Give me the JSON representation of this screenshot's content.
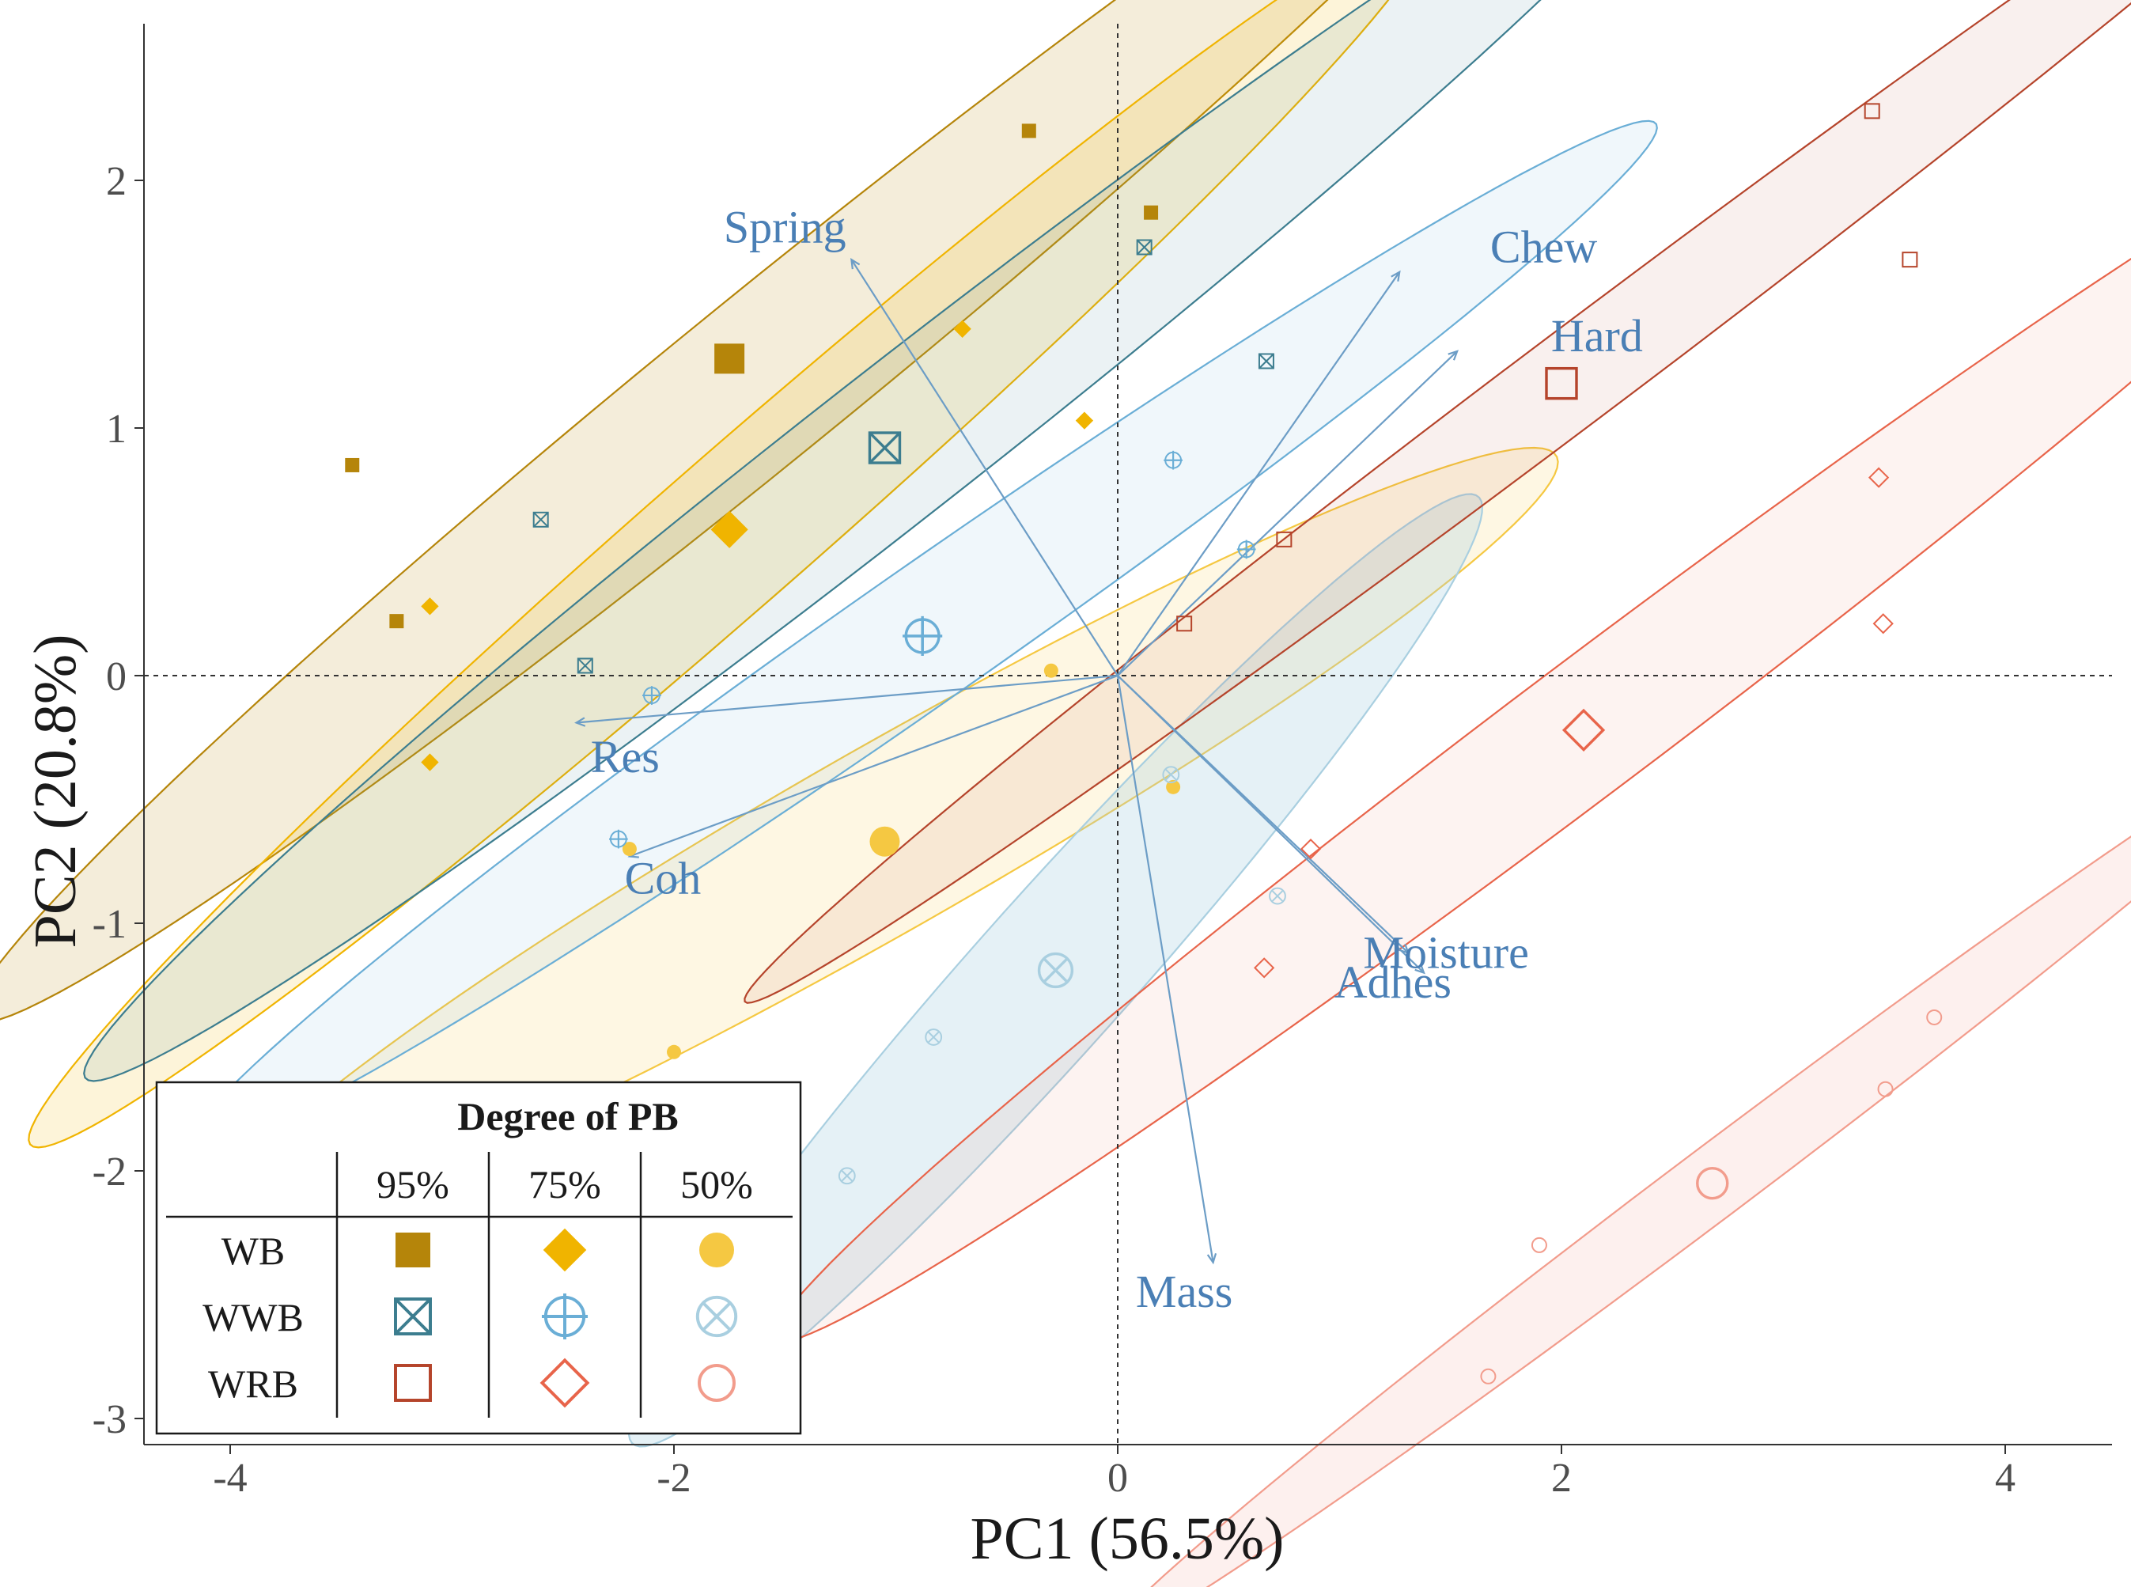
{
  "chart_data": {
    "type": "scatter",
    "subtype": "pca-biplot",
    "xlabel": "PC1 (56.5%)",
    "ylabel": "PC2 (20.8%)",
    "xlim": [
      -4.4,
      4.5
    ],
    "ylim": [
      -3.1,
      2.6
    ],
    "xticks": [
      -4,
      -2,
      0,
      2,
      4
    ],
    "yticks": [
      -3,
      -2,
      -1,
      0,
      1,
      2
    ],
    "xtick_labels": [
      "-4",
      "-2",
      "0",
      "2",
      "4"
    ],
    "ytick_labels": [
      "-3",
      "-2",
      "-1",
      "0",
      "1",
      "2"
    ],
    "grid": false,
    "reference_lines": {
      "x": 0,
      "y": 0,
      "style": "dashed"
    },
    "colors": {
      "WB": "#b5850a",
      "WB75": "#f0b400",
      "WB50": "#f5c842",
      "WWB": "#3c7d8f",
      "WWB75": "#6aaed6",
      "WWB50": "#a9cfe0",
      "WRB": "#b5442b",
      "WRB75": "#e8644a",
      "WRB50": "#f29c8c",
      "arrow": "#6c9dc6"
    },
    "groups": [
      {
        "name": "WB-95%",
        "bread": "WB",
        "pb": "95%",
        "shape": "filled-square",
        "color": "#b5850a",
        "fill_opacity": 0.15,
        "points": [
          [
            -3.45,
            0.85
          ],
          [
            -3.25,
            0.22
          ],
          [
            -0.4,
            2.2
          ],
          [
            0.15,
            1.87
          ]
        ],
        "centroid": [
          -1.75,
          1.28
        ],
        "ellipse": {
          "center": [
            -1.6,
            1.2
          ],
          "radius_x": 4.4,
          "radius_y": 0.35,
          "angle_deg": 36
        }
      },
      {
        "name": "WB-75%",
        "bread": "WB",
        "pb": "75%",
        "shape": "filled-diamond",
        "color": "#f0b400",
        "fill_opacity": 0.15,
        "points": [
          [
            -3.1,
            0.28
          ],
          [
            -3.1,
            -0.35
          ],
          [
            -0.7,
            1.4
          ],
          [
            -0.15,
            1.03
          ]
        ],
        "centroid": [
          -1.75,
          0.59
        ],
        "ellipse": {
          "center": [
            -1.75,
            0.57
          ],
          "radius_x": 4.0,
          "radius_y": 0.32,
          "angle_deg": 38
        }
      },
      {
        "name": "WB-50%",
        "bread": "WB",
        "pb": "50%",
        "shape": "filled-circle",
        "color": "#f5c842",
        "fill_opacity": 0.15,
        "points": [
          [
            -0.3,
            0.02
          ],
          [
            0.25,
            -0.45
          ],
          [
            -2.2,
            -0.7
          ],
          [
            -2.0,
            -1.52
          ]
        ],
        "centroid": [
          -1.05,
          -0.67
        ],
        "ellipse": {
          "center": [
            -1.05,
            -0.66
          ],
          "radius_x": 3.4,
          "radius_y": 0.38,
          "angle_deg": 27
        }
      },
      {
        "name": "WWB-95%",
        "bread": "WWB",
        "pb": "95%",
        "shape": "boxed-x",
        "color": "#3c7d8f",
        "fill_opacity": 0.1,
        "points": [
          [
            -2.6,
            0.63
          ],
          [
            -2.4,
            0.04
          ],
          [
            0.12,
            1.73
          ],
          [
            0.67,
            1.27
          ]
        ],
        "centroid": [
          -1.05,
          0.92
        ],
        "ellipse": {
          "center": [
            -1.05,
            0.9
          ],
          "radius_x": 4.4,
          "radius_y": 0.32,
          "angle_deg": 35
        }
      },
      {
        "name": "WWB-75%",
        "bread": "WWB",
        "pb": "75%",
        "shape": "circled-plus",
        "color": "#6aaed6",
        "fill_opacity": 0.1,
        "points": [
          [
            -2.1,
            -0.08
          ],
          [
            -2.25,
            -0.66
          ],
          [
            0.25,
            0.87
          ],
          [
            0.58,
            0.51
          ]
        ],
        "centroid": [
          -0.88,
          0.16
        ],
        "ellipse": {
          "center": [
            -0.88,
            0.16
          ],
          "radius_x": 3.9,
          "radius_y": 0.28,
          "angle_deg": 32
        }
      },
      {
        "name": "WWB-50%",
        "bread": "WWB",
        "pb": "50%",
        "shape": "circled-x",
        "color": "#a9cfe0",
        "fill_opacity": 0.3,
        "points": [
          [
            0.24,
            -0.4
          ],
          [
            0.72,
            -0.89
          ],
          [
            -0.83,
            -1.46
          ],
          [
            -1.22,
            -2.02
          ]
        ],
        "centroid": [
          -0.28,
          -1.19
        ],
        "ellipse": {
          "center": [
            -0.28,
            -1.19
          ],
          "radius_x": 2.7,
          "radius_y": 0.33,
          "angle_deg": 45
        }
      },
      {
        "name": "WRB-95%",
        "bread": "WRB",
        "pb": "95%",
        "shape": "open-square",
        "color": "#b5442b",
        "fill_opacity": 0.08,
        "points": [
          [
            0.3,
            0.21
          ],
          [
            0.75,
            0.55
          ],
          [
            3.4,
            2.28
          ],
          [
            3.57,
            1.68
          ]
        ],
        "centroid": [
          2.0,
          1.18
        ],
        "ellipse": {
          "center": [
            2.05,
            1.2
          ],
          "radius_x": 4.5,
          "radius_y": 0.2,
          "angle_deg": 34
        }
      },
      {
        "name": "WRB-75%",
        "bread": "WRB",
        "pb": "75%",
        "shape": "open-diamond",
        "color": "#e8644a",
        "fill_opacity": 0.08,
        "points": [
          [
            0.87,
            -0.7
          ],
          [
            0.66,
            -1.18
          ],
          [
            3.43,
            0.8
          ],
          [
            3.45,
            0.21
          ]
        ],
        "centroid": [
          2.1,
          -0.22
        ],
        "ellipse": {
          "center": [
            2.1,
            -0.22
          ],
          "radius_x": 4.4,
          "radius_y": 0.28,
          "angle_deg": 34
        }
      },
      {
        "name": "WRB-50%",
        "bread": "WRB",
        "pb": "50%",
        "shape": "open-circle",
        "color": "#f29c8c",
        "fill_opacity": 0.15,
        "points": [
          [
            1.9,
            -2.3
          ],
          [
            1.67,
            -2.83
          ],
          [
            3.68,
            -1.38
          ],
          [
            3.46,
            -1.67
          ]
        ],
        "centroid": [
          2.68,
          -2.05
        ],
        "ellipse": {
          "center": [
            2.68,
            -2.05
          ],
          "radius_x": 3.3,
          "radius_y": 0.15,
          "angle_deg": 34
        }
      }
    ],
    "loadings": [
      {
        "name": "Spring",
        "end": [
          -1.2,
          1.68
        ]
      },
      {
        "name": "Chew",
        "end": [
          1.27,
          1.63
        ]
      },
      {
        "name": "Hard",
        "end": [
          1.53,
          1.31
        ]
      },
      {
        "name": "Res",
        "end": [
          -2.44,
          -0.19
        ]
      },
      {
        "name": "Coh",
        "end": [
          -2.2,
          -0.73
        ]
      },
      {
        "name": "Moisture",
        "end": [
          1.38,
          -1.2
        ]
      },
      {
        "name": "Adhes",
        "end": [
          1.31,
          -1.12
        ]
      },
      {
        "name": "Mass",
        "end": [
          0.43,
          -2.37
        ]
      }
    ],
    "loading_labels": [
      "Spring",
      "Chew",
      "Hard",
      "Res",
      "Coh",
      "Moisture",
      "Adhes",
      "Mass"
    ],
    "legend": {
      "title": "Degree of PB",
      "columns": [
        "95%",
        "75%",
        "50%"
      ],
      "rows": [
        "WB",
        "WWB",
        "WRB"
      ],
      "location": "bottom-left"
    }
  }
}
